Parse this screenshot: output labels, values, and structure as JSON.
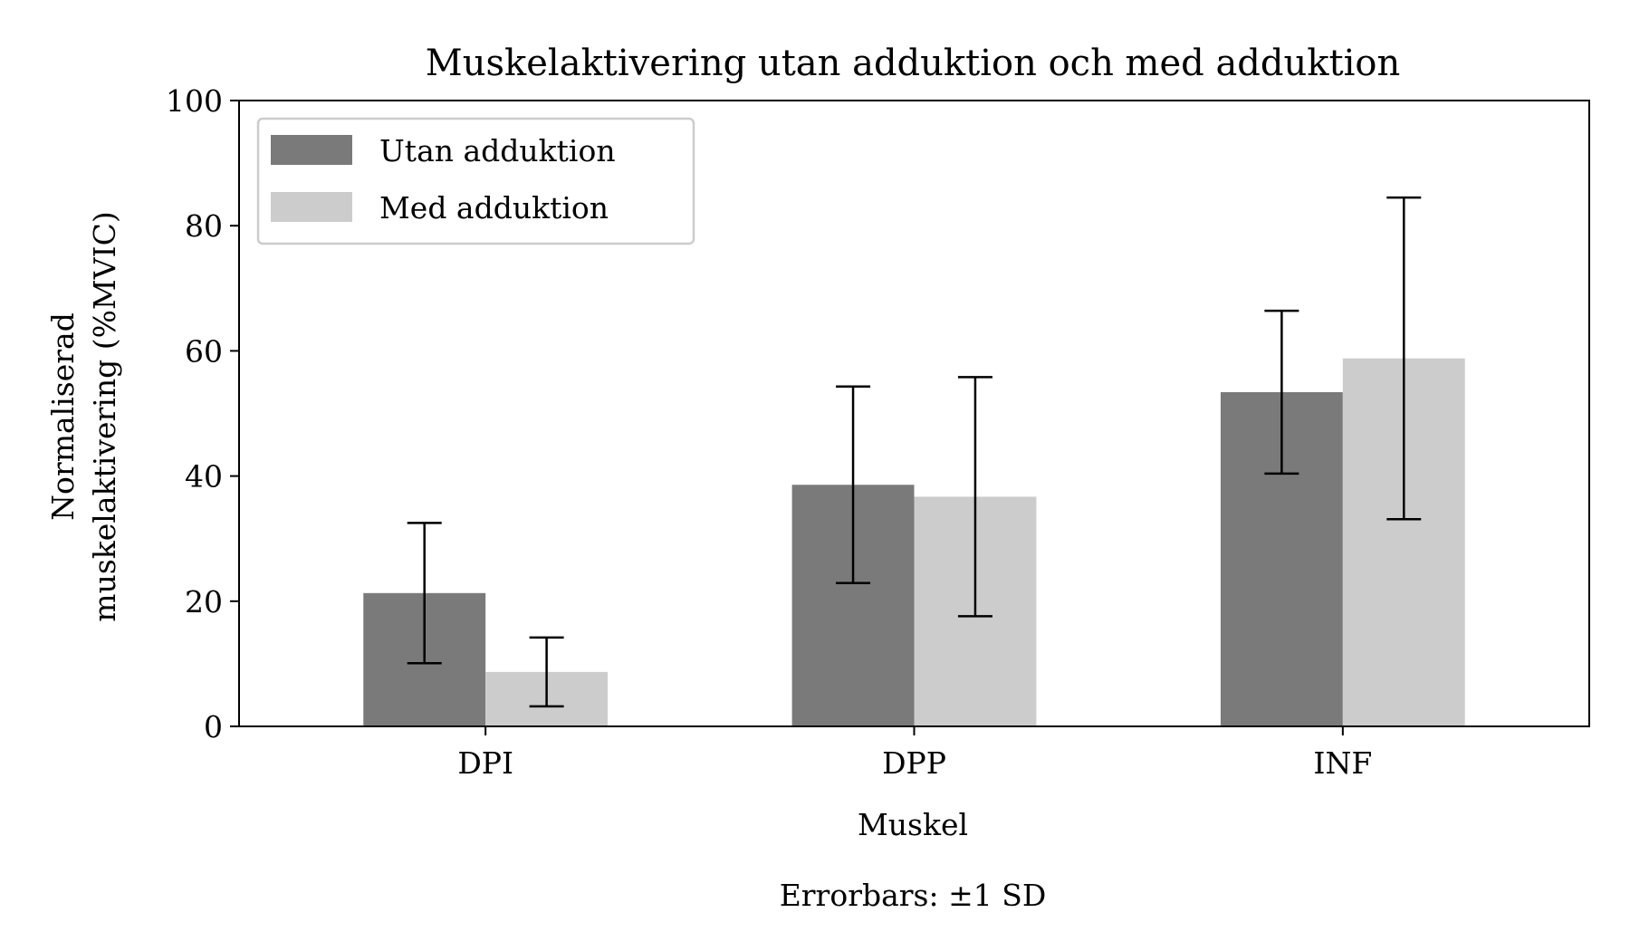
{
  "chart_data": {
    "type": "bar",
    "title": "Muskelaktivering utan adduktion och med adduktion",
    "xlabel": "Muskel",
    "ylabel_lines": [
      "Normaliserad",
      "muskelaktivering (%MVIC)"
    ],
    "footnote": "Errorbars: ±1 SD",
    "categories": [
      "DPI",
      "DPP",
      "INF"
    ],
    "ylim": [
      0,
      100
    ],
    "yticks": [
      0,
      20,
      40,
      60,
      80,
      100
    ],
    "ytick_labels": [
      "0",
      "20",
      "40",
      "60",
      "80",
      "100"
    ],
    "grid": false,
    "legend_position": "top-left",
    "series": [
      {
        "name": "Utan adduktion",
        "color": "#7a7a7a",
        "values": [
          21.3,
          38.6,
          53.4
        ],
        "sd": [
          11.2,
          15.7,
          13.0
        ]
      },
      {
        "name": "Med adduktion",
        "color": "#cccccc",
        "values": [
          8.7,
          36.7,
          58.8
        ],
        "sd": [
          5.5,
          19.1,
          25.7
        ]
      }
    ]
  }
}
